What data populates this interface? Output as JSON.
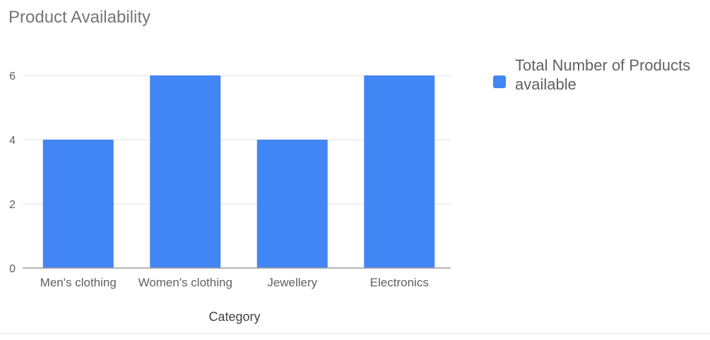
{
  "chart_data": {
    "type": "bar",
    "title": "Product Availability",
    "xlabel": "Category",
    "ylabel": "",
    "categories": [
      "Men's clothing",
      "Women's clothing",
      "Jewellery",
      "Electronics"
    ],
    "series": [
      {
        "name": "Total Number of Products available",
        "values": [
          4,
          6,
          4,
          6
        ],
        "color": "#4285f4"
      }
    ],
    "ylim": [
      0,
      6
    ],
    "yticks": [
      0,
      2,
      4,
      6
    ],
    "grid": true,
    "legend_position": "right"
  }
}
